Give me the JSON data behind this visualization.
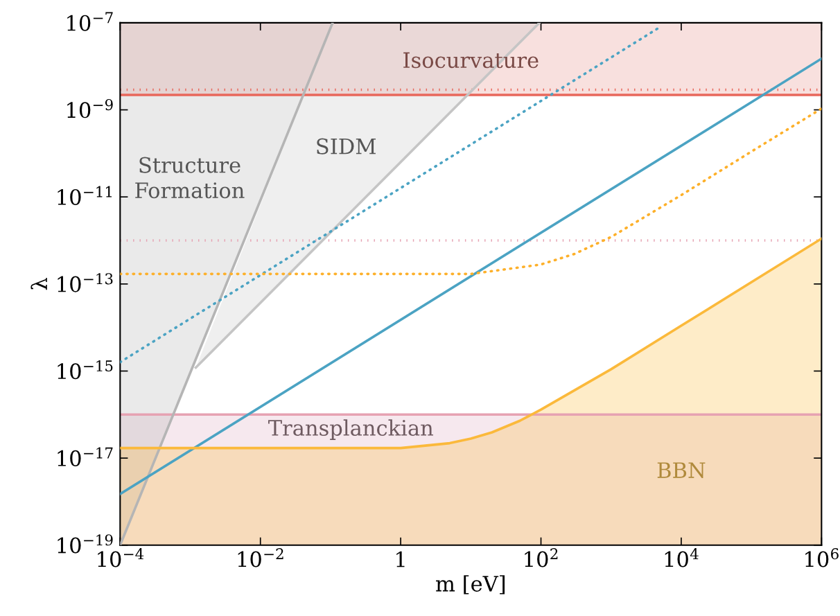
{
  "chart_data": {
    "type": "line",
    "xlabel": "m [eV]",
    "ylabel": "λ",
    "log": "xy",
    "xlim": [
      0.0001,
      1000000
    ],
    "ylim": [
      1e-19,
      1e-07
    ],
    "xticks": [
      {
        "value": 0.0001,
        "label": "10$^{−4}$"
      },
      {
        "value": 0.01,
        "label": "10$^{−2}$"
      },
      1,
      {
        "value": 100,
        "label": "10$^{2}$"
      },
      {
        "value": 10000,
        "label": "10$^{4}$"
      },
      {
        "value": 1000000,
        "label": "10$^{6}$"
      }
    ],
    "yticks": [
      {
        "value": 1e-19,
        "label": "10$^{−19}$"
      },
      {
        "value": 1e-17,
        "label": "10$^{−17}$"
      },
      {
        "value": 1e-15,
        "label": "10$^{−15}$"
      },
      {
        "value": 1e-13,
        "label": "10$^{−13}$"
      },
      {
        "value": 1e-11,
        "label": "10$^{−11}$"
      },
      {
        "value": 1e-09,
        "label": "10$^{−9}$"
      },
      {
        "value": 1e-07,
        "label": "10$^{−7}$"
      }
    ],
    "bands": [
      {
        "axis": "y",
        "from": 2.2e-09,
        "to": 1e-07,
        "color": "#f8e0de"
      },
      {
        "axis": "y",
        "from": 1e-19,
        "to": 1e-16,
        "color": "#f6e8ee"
      }
    ],
    "ref_lines": [
      {
        "axis": "y",
        "value": 2.2e-09,
        "color": "#e8675b",
        "line_style": "solid"
      },
      {
        "axis": "y",
        "value": 2.9e-09,
        "color": "#e8675b",
        "line_style": "dotted"
      },
      {
        "axis": "y",
        "value": 1e-12,
        "color": "#e6a2b2",
        "line_style": "dotted"
      },
      {
        "axis": "y",
        "value": 1e-16,
        "color": "#e6a2b2",
        "line_style": "solid"
      }
    ],
    "series": [
      {
        "color": "#b5b5b5",
        "line_style": "solid",
        "x": [
          0.0001,
          0.00316,
          0.107
        ],
        "values": [
          1e-19,
          8.7e-14,
          1e-07
        ],
        "lower": [
          1e-19,
          8.7e-14,
          1e-07
        ],
        "upper": [
          1e-07,
          1e-07,
          1e-07
        ]
      },
      {
        "color": "#c5c5c5",
        "line_style": "solid",
        "x": [
          0.0012,
          0.107,
          95
        ],
        "values": [
          1.2e-15,
          1.7e-12,
          1e-07
        ],
        "lower": [
          1.2e-15,
          1.7e-12,
          1e-07
        ],
        "upper": [
          1.2e-15,
          1e-07,
          1e-07
        ]
      },
      {
        "color": "#4ba3c3",
        "line_style": "solid",
        "x": [
          0.0001,
          1000000
        ],
        "values": [
          1.5e-18,
          1.5e-08
        ]
      },
      {
        "color": "#4ba3c3",
        "line_style": "dotted",
        "x": [
          0.0001,
          5000
        ],
        "values": [
          1.6e-15,
          8e-08
        ]
      },
      {
        "color": "#fbb93b",
        "line_style": "solid",
        "x": [
          0.0001,
          1,
          5,
          10,
          20,
          50,
          100,
          1000,
          10000,
          100000,
          1000000
        ],
        "values": [
          1.7e-17,
          1.7e-17,
          2.2e-17,
          2.8e-17,
          3.9e-17,
          7.2e-17,
          1.3e-16,
          1.1e-15,
          1.1e-14,
          1.1e-13,
          1.1e-12
        ],
        "lower": [
          1e-19,
          1e-19,
          1e-19,
          1e-19,
          1e-19,
          1e-19,
          1e-19,
          1e-19,
          1e-19,
          1e-19,
          1e-19
        ],
        "upper": [
          1.7e-17,
          1.7e-17,
          2.2e-17,
          2.8e-17,
          3.9e-17,
          7.2e-17,
          1.3e-16,
          1.1e-15,
          1.1e-14,
          1.1e-13,
          1.1e-12
        ]
      },
      {
        "color": "#fdb02a",
        "line_style": "dotted",
        "x": [
          0.0001,
          10,
          100,
          300,
          1000,
          10000,
          100000,
          1000000
        ],
        "values": [
          1.7e-13,
          1.7e-13,
          2.8e-13,
          4.9e-13,
          1.2e-12,
          1.1e-11,
          1.1e-10,
          1.07e-09
        ]
      }
    ],
    "annotations": [
      "Isocurvature",
      "Structure\nFormation",
      "SIDM",
      "Transplanckian",
      "BBN"
    ]
  }
}
